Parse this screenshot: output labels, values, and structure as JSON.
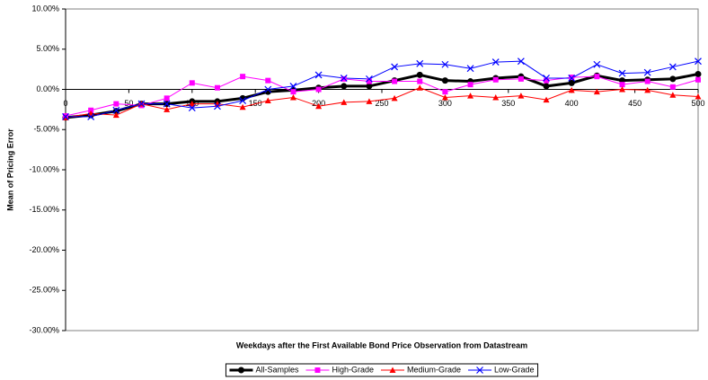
{
  "chart_data": {
    "type": "line",
    "x_label": "Weekdays after the First Available Bond Price Observation from Datastream",
    "y_label": "Mean of Pricing Error",
    "x": [
      0,
      20,
      40,
      60,
      80,
      100,
      120,
      140,
      160,
      180,
      200,
      220,
      240,
      260,
      280,
      300,
      320,
      340,
      360,
      380,
      400,
      420,
      440,
      460,
      480,
      500
    ],
    "series": [
      {
        "name": "All-Samples",
        "color": "#000000",
        "marker": "circle",
        "width": 3,
        "values": [
          -3.5,
          -3.2,
          -2.7,
          -1.8,
          -1.8,
          -1.5,
          -1.5,
          -1.1,
          -0.3,
          -0.1,
          0.2,
          0.4,
          0.4,
          1.1,
          1.8,
          1.1,
          1.0,
          1.4,
          1.6,
          0.4,
          0.8,
          1.7,
          1.1,
          1.2,
          1.3,
          1.9
        ]
      },
      {
        "name": "High-Grade",
        "color": "#ff00ff",
        "marker": "square",
        "width": 1,
        "values": [
          -3.3,
          -2.6,
          -1.8,
          -2.0,
          -1.1,
          0.8,
          0.2,
          1.6,
          1.1,
          -0.3,
          0.0,
          1.3,
          1.0,
          1.0,
          1.0,
          -0.3,
          0.6,
          1.2,
          1.3,
          1.1,
          1.5,
          1.6,
          0.6,
          1.0,
          0.3,
          1.2
        ]
      },
      {
        "name": "Medium-Grade",
        "color": "#ff0000",
        "marker": "triangle",
        "width": 1,
        "values": [
          -3.5,
          -3.0,
          -3.2,
          -1.8,
          -2.5,
          -1.8,
          -1.8,
          -2.2,
          -1.4,
          -1.0,
          -2.1,
          -1.6,
          -1.5,
          -1.1,
          0.2,
          -1.0,
          -0.8,
          -1.0,
          -0.8,
          -1.3,
          -0.1,
          -0.3,
          0.0,
          -0.1,
          -0.7,
          -0.9
        ]
      },
      {
        "name": "Low-Grade",
        "color": "#0000ff",
        "marker": "x",
        "width": 1,
        "values": [
          -3.4,
          -3.4,
          -2.6,
          -1.8,
          -1.8,
          -2.3,
          -2.1,
          -1.4,
          0.0,
          0.4,
          1.8,
          1.4,
          1.3,
          2.8,
          3.2,
          3.1,
          2.6,
          3.4,
          3.5,
          1.4,
          1.4,
          3.1,
          2.0,
          2.1,
          2.8,
          3.5
        ]
      }
    ],
    "xlim": [
      0,
      500
    ],
    "xticks": [
      0,
      50,
      100,
      150,
      200,
      250,
      300,
      350,
      400,
      450,
      500
    ],
    "ylim": [
      -30,
      10
    ],
    "yticks": [
      {
        "value": 10,
        "label": "10.00%"
      },
      {
        "value": 5,
        "label": "5.00%"
      },
      {
        "value": 0,
        "label": "0.00%"
      },
      {
        "value": -5,
        "label": "-5.00%"
      },
      {
        "value": -10,
        "label": "-10.00%"
      },
      {
        "value": -15,
        "label": "-15.00%"
      },
      {
        "value": -20,
        "label": "-20.00%"
      },
      {
        "value": -25,
        "label": "-25.00%"
      },
      {
        "value": -30,
        "label": "-30.00%"
      }
    ],
    "grid": false,
    "legend": "bottom"
  }
}
